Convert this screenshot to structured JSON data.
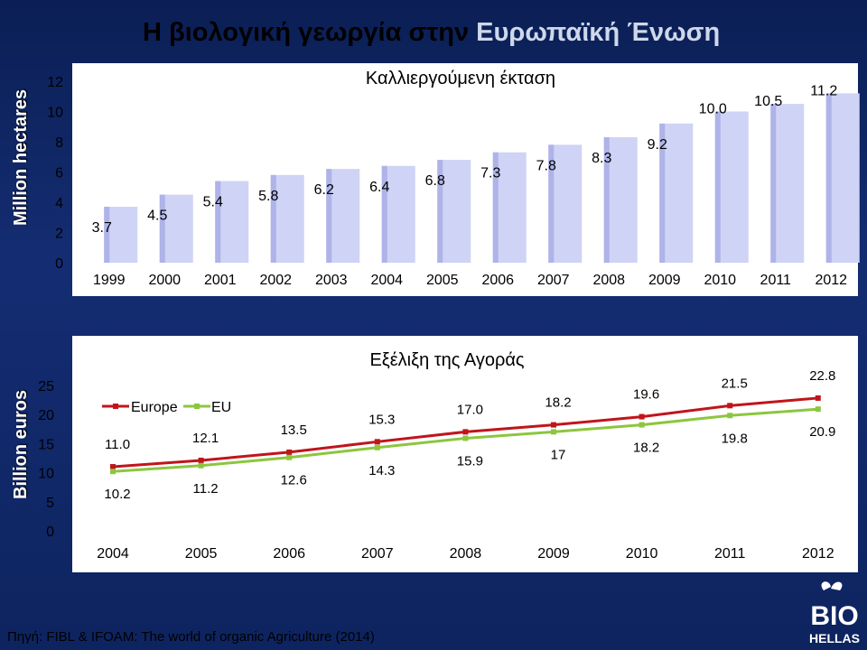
{
  "title_part1": "Η βιολογική γεωργία στην ",
  "title_part2": "Ευρωπαϊκή Ένωση",
  "source": "Πηγή: FIBL & IFOAM: The world of organic Agriculture (2014)",
  "logo": {
    "line1": "BIO",
    "line2": "HELLAS"
  },
  "colors": {
    "bar": "#cfd3f5",
    "europe": "#c0151b",
    "eu": "#8cc63f",
    "panel": "#ffffff"
  },
  "chart_data": [
    {
      "type": "bar",
      "title": "Καλλιεργούμενη έκταση",
      "ylabel": "Million hectares",
      "xlabel": "",
      "categories": [
        "1999",
        "2000",
        "2001",
        "2002",
        "2003",
        "2004",
        "2005",
        "2006",
        "2007",
        "2008",
        "2009",
        "2010",
        "2011",
        "2012"
      ],
      "values": [
        3.7,
        4.5,
        5.4,
        5.8,
        6.2,
        6.4,
        6.8,
        7.3,
        7.8,
        8.3,
        9.2,
        10.0,
        10.5,
        11.2
      ],
      "value_labels": [
        "3.7",
        "4.5",
        "5.4",
        "5.8",
        "6.2",
        "6.4",
        "6.8",
        "7.3",
        "7.8",
        "8.3",
        "9.2",
        "10.0",
        "10.5",
        "11.2"
      ],
      "ylim": [
        0,
        12
      ],
      "yticks": [
        "0",
        "2",
        "4",
        "6",
        "8",
        "10",
        "12"
      ],
      "grid": false
    },
    {
      "type": "line",
      "title": "Εξέλιξη της Αγοράς",
      "ylabel": "Billion euros",
      "xlabel": "",
      "categories": [
        "2004",
        "2005",
        "2006",
        "2007",
        "2008",
        "2009",
        "2010",
        "2011",
        "2012"
      ],
      "ylim": [
        0,
        25
      ],
      "yticks": [
        "0",
        "5",
        "10",
        "15",
        "20",
        "25"
      ],
      "legend_position": "top-left",
      "series": [
        {
          "name": "Europe",
          "values": [
            11.0,
            12.1,
            13.5,
            15.3,
            17.0,
            18.2,
            19.6,
            21.5,
            22.8
          ],
          "labels": [
            "11.0",
            "12.1",
            "13.5",
            "15.3",
            "17.0",
            "18.2",
            "19.6",
            "21.5",
            "22.8"
          ]
        },
        {
          "name": "EU",
          "values": [
            10.2,
            11.2,
            12.6,
            14.3,
            15.9,
            17,
            18.2,
            19.8,
            20.9
          ],
          "labels": [
            "10.2",
            "11.2",
            "12.6",
            "14.3",
            "15.9",
            "17",
            "18.2",
            "19.8",
            "20.9"
          ]
        }
      ],
      "grid": false
    }
  ]
}
